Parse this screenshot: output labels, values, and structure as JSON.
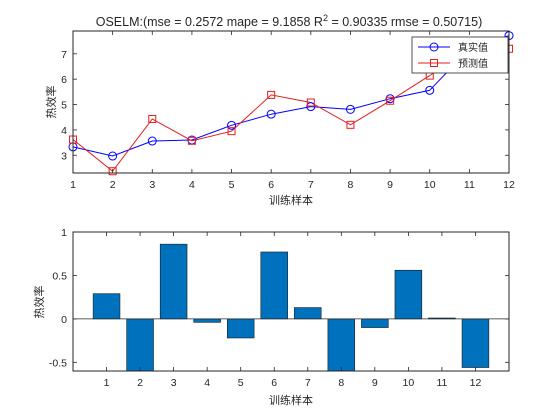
{
  "chart_data": [
    {
      "type": "line",
      "title": "OSELM:(mse = 0.2572 mape = 9.1858  R",
      "title_sup": "2",
      "title_tail": " = 0.90335 rmse = 0.50715)",
      "xlabel": "训练样本",
      "ylabel": "热效率",
      "x": [
        1,
        2,
        3,
        4,
        5,
        6,
        7,
        8,
        9,
        10,
        11,
        12
      ],
      "xlim": [
        1,
        12
      ],
      "ylim": [
        2.3,
        7.9
      ],
      "xticks": [
        1,
        2,
        3,
        4,
        5,
        6,
        7,
        8,
        9,
        10,
        11,
        12
      ],
      "yticks": [
        3,
        4,
        5,
        6,
        7
      ],
      "grid": false,
      "legend_position": "top-right",
      "series": [
        {
          "name": "真实值",
          "marker": "circle",
          "color": "#0000ff",
          "values": [
            3.33,
            2.97,
            3.56,
            3.6,
            4.18,
            4.62,
            4.92,
            4.81,
            5.23,
            5.56,
            7.2,
            7.72
          ]
        },
        {
          "name": "预测值",
          "marker": "square",
          "color": "#e51e1e",
          "values": [
            3.62,
            2.37,
            4.43,
            3.57,
            3.95,
            5.38,
            5.08,
            4.2,
            5.15,
            6.14,
            7.22,
            7.2
          ]
        }
      ]
    },
    {
      "type": "bar",
      "xlabel": "训练样本",
      "ylabel": "热效率",
      "categories": [
        "1",
        "2",
        "3",
        "4",
        "5",
        "6",
        "7",
        "8",
        "9",
        "10",
        "11",
        "12"
      ],
      "values": [
        0.29,
        -0.62,
        0.86,
        -0.04,
        -0.22,
        0.77,
        0.13,
        -0.62,
        -0.1,
        0.56,
        0.01,
        -0.56
      ],
      "xlim": [
        0,
        13
      ],
      "ylim": [
        -0.6,
        1
      ],
      "yticks": [
        -0.5,
        0,
        0.5,
        1
      ],
      "ytick_labels": [
        "-0.5",
        "0",
        "0.5",
        "1"
      ],
      "bar_color": "#0072bd",
      "grid": false
    }
  ]
}
